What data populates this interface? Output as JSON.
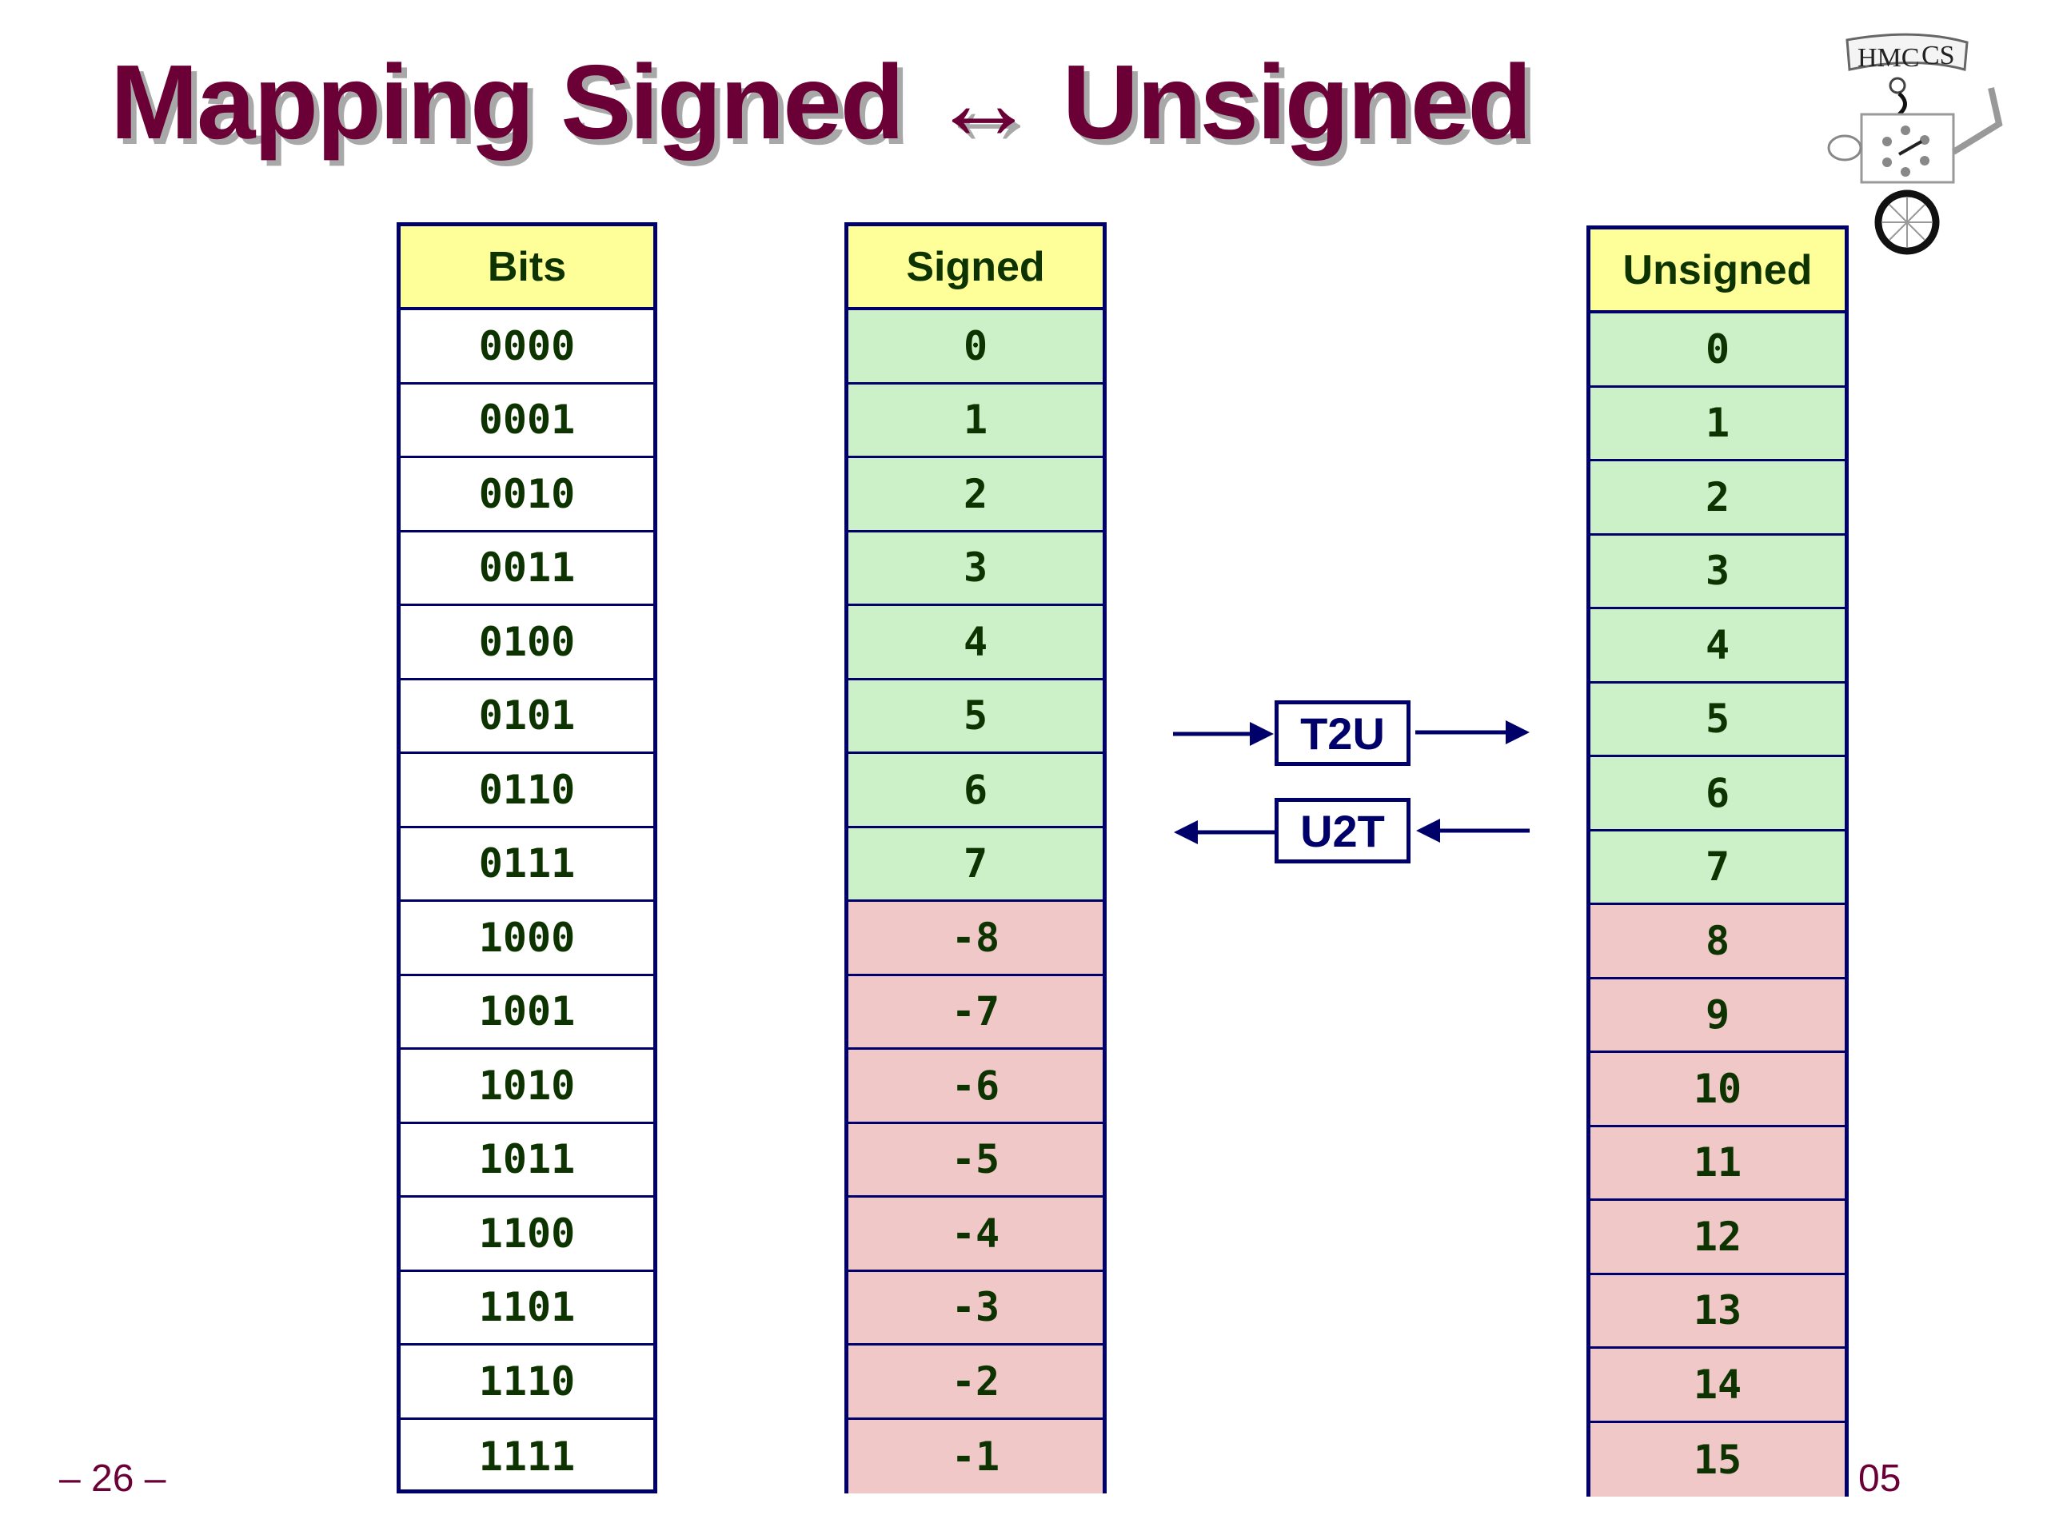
{
  "title": "Mapping Signed ↔ Unsigned",
  "colors": {
    "title": "#6b0036",
    "border": "#00006b",
    "header_bg": "#ffff99",
    "nonnegative_bg": "#ccf0c8",
    "negative_bg": "#f0c8c8",
    "text": "#0d3300"
  },
  "logo": {
    "text": "HMC CS",
    "icon": "robot-unicycle-logo"
  },
  "tables": {
    "bits": {
      "header": "Bits",
      "rows": [
        "0000",
        "0001",
        "0010",
        "0011",
        "0100",
        "0101",
        "0110",
        "0111",
        "1000",
        "1001",
        "1010",
        "1011",
        "1100",
        "1101",
        "1110",
        "1111"
      ]
    },
    "signed": {
      "header": "Signed",
      "rows": [
        "0",
        "1",
        "2",
        "3",
        "4",
        "5",
        "6",
        "7",
        "-8",
        "-7",
        "-6",
        "-5",
        "-4",
        "-3",
        "-2",
        "-1"
      ]
    },
    "unsigned": {
      "header": "Unsigned",
      "rows": [
        "0",
        "1",
        "2",
        "3",
        "4",
        "5",
        "6",
        "7",
        "8",
        "9",
        "10",
        "11",
        "12",
        "13",
        "14",
        "15"
      ]
    }
  },
  "conversions": {
    "t2u": "T2U",
    "u2t": "U2T"
  },
  "footer": {
    "page": "– 26 –",
    "suffix": "05"
  }
}
